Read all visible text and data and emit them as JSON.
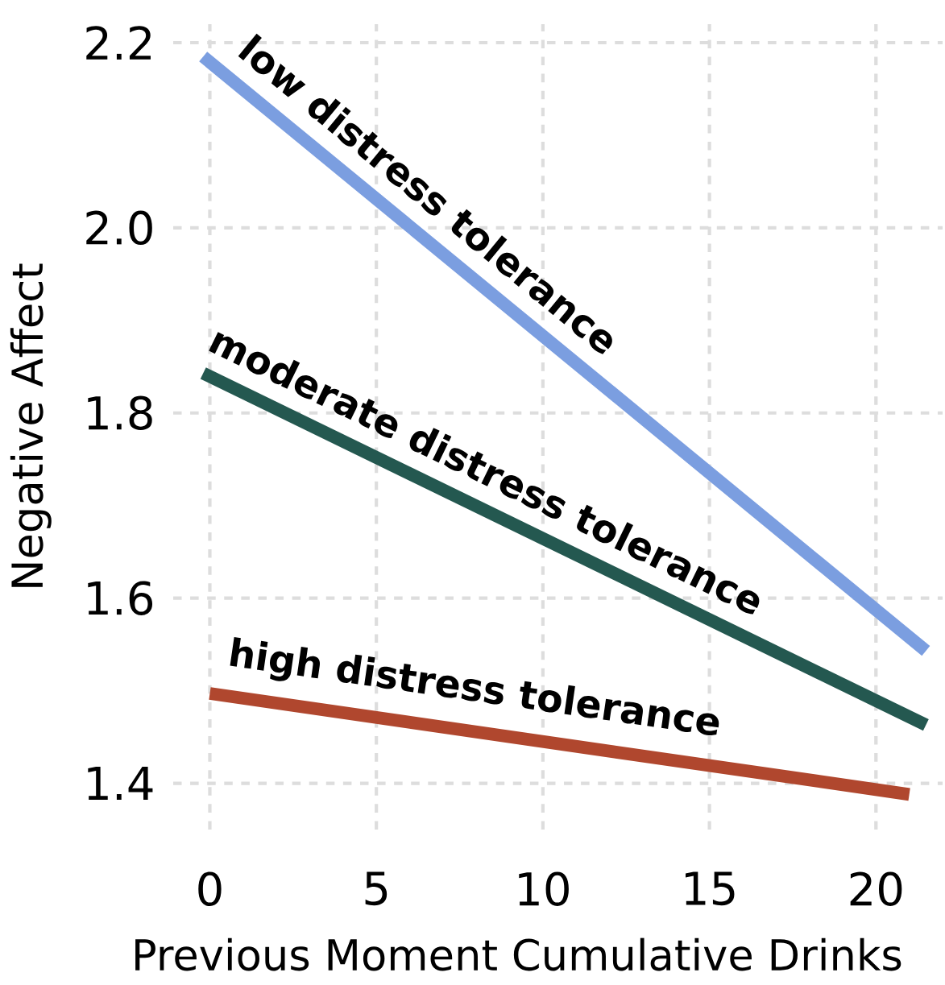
{
  "chart_data": {
    "type": "line",
    "xlabel": "Previous Moment Cumulative Drinks",
    "ylabel": "Negative Affect",
    "series": [
      {
        "x": [
          -0.2,
          21.5
        ],
        "values": [
          2.185,
          1.543
        ],
        "color": "#7b9ee0"
      },
      {
        "x": [
          -0.2,
          21.5
        ],
        "values": [
          1.843,
          1.463
        ],
        "color": "#245850"
      },
      {
        "x": [
          0,
          21
        ],
        "values": [
          1.497,
          1.388
        ],
        "color": "#b0472e"
      }
    ],
    "annotations": [
      "low distress tolerance",
      "moderate distress tolerance",
      "high distress tolerance"
    ],
    "xlim": [
      -1.1,
      22
    ],
    "ylim": [
      1.35,
      2.22
    ],
    "xticks": [
      0,
      5,
      10,
      15,
      20
    ],
    "yticks": [
      1.4,
      1.6,
      1.8,
      {
        "value": 2.0,
        "label": "2.0"
      },
      2.2
    ],
    "grid": true,
    "line_style": "solid",
    "marker": "none"
  }
}
